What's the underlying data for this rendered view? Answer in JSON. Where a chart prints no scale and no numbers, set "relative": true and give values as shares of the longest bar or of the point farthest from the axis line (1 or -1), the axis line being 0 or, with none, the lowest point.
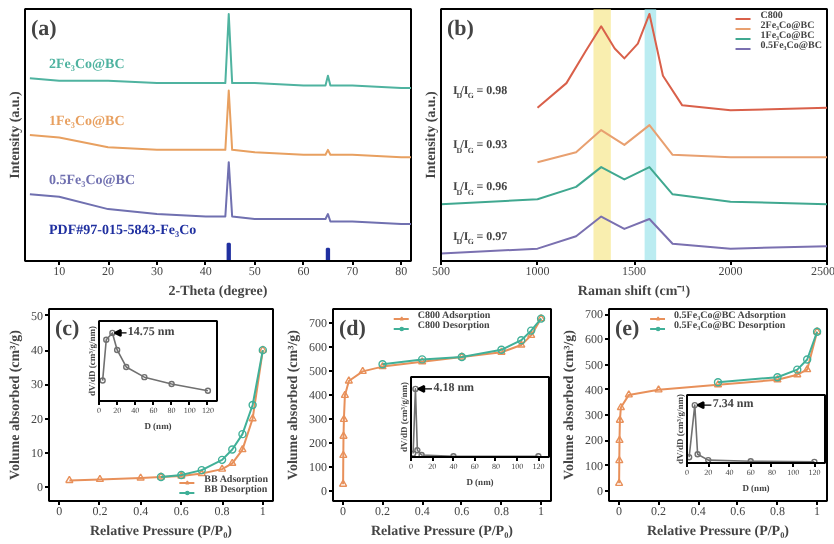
{
  "chart_data": [
    {
      "type": "line",
      "title": "(a)",
      "xlabel": "2-Theta (degree)",
      "ylabel": "Intensity (a.u.)",
      "relative": true,
      "xlim": [
        3,
        82
      ],
      "xticks": [
        10,
        20,
        30,
        40,
        50,
        60,
        70,
        80
      ],
      "legend": false,
      "grid": false,
      "series": [
        {
          "name": "2Fe₃Co@BC",
          "color": "#4fb3a0",
          "x": [
            4,
            10,
            20,
            30,
            40,
            44,
            44.7,
            45.4,
            50,
            60,
            64.5,
            65,
            65.5,
            70,
            80,
            82
          ],
          "values": [
            0.74,
            0.73,
            0.73,
            0.72,
            0.72,
            0.72,
            1.0,
            0.72,
            0.72,
            0.71,
            0.71,
            0.75,
            0.71,
            0.71,
            0.7,
            0.7
          ]
        },
        {
          "name": "1Fe₃Co@BC",
          "color": "#e8a060",
          "x": [
            4,
            10,
            20,
            30,
            40,
            44,
            44.7,
            45.4,
            50,
            60,
            64.5,
            65,
            65.5,
            70,
            80,
            82
          ],
          "values": [
            0.51,
            0.5,
            0.46,
            0.45,
            0.45,
            0.45,
            0.69,
            0.45,
            0.44,
            0.43,
            0.43,
            0.45,
            0.43,
            0.43,
            0.42,
            0.42
          ]
        },
        {
          "name": "0.5Fe₃Co@BC",
          "color": "#7070b0",
          "x": [
            4,
            10,
            20,
            30,
            40,
            44,
            44.7,
            45.4,
            50,
            60,
            64.5,
            65,
            65.5,
            70,
            80,
            82
          ],
          "values": [
            0.27,
            0.26,
            0.21,
            0.19,
            0.18,
            0.18,
            0.4,
            0.18,
            0.17,
            0.17,
            0.17,
            0.19,
            0.16,
            0.16,
            0.15,
            0.15
          ]
        },
        {
          "name": "PDF#97-015-5843-Fe₃Co",
          "type": "bar",
          "color": "#2030a0",
          "x": [
            44.7,
            65.0
          ],
          "values": [
            0.07,
            0.05
          ]
        }
      ]
    },
    {
      "type": "line",
      "title": "(b)",
      "xlabel": "Raman shift (cm⁻¹)",
      "ylabel": "Intensity (a.u.)",
      "relative": true,
      "xlim": [
        500,
        2500
      ],
      "xticks": [
        500,
        1000,
        1500,
        2000,
        2500
      ],
      "legend": "top right",
      "grid": false,
      "bands": [
        {
          "axis": "x",
          "from": 1290,
          "to": 1380,
          "color": "#f5e27a"
        },
        {
          "axis": "x",
          "from": 1555,
          "to": 1615,
          "color": "#8ee0e8"
        }
      ],
      "annotations": [
        "I$_{D}$/I$_{G}$ = 0.98",
        "I$_{D}$/I$_{G}$ = 0.93",
        "I$_{D}$/I$_{G}$ = 0.96",
        "I$_{D}$/I$_{G}$ = 0.97"
      ],
      "series": [
        {
          "name": "C800",
          "color": "#d9604a",
          "x": [
            1000,
            1150,
            1250,
            1330,
            1400,
            1450,
            1520,
            1580,
            1650,
            1750,
            2000,
            2500
          ],
          "values": [
            0.62,
            0.72,
            0.85,
            0.95,
            0.86,
            0.82,
            0.88,
            1.0,
            0.75,
            0.63,
            0.61,
            0.62
          ]
        },
        {
          "name": "2Fe₃Co@BC",
          "color": "#e8a070",
          "x": [
            1000,
            1200,
            1330,
            1450,
            1580,
            1700,
            2000,
            2500
          ],
          "values": [
            0.4,
            0.44,
            0.53,
            0.47,
            0.55,
            0.43,
            0.42,
            0.42
          ]
        },
        {
          "name": "1Fe₃Co@BC",
          "color": "#40a890",
          "x": [
            500,
            1000,
            1200,
            1330,
            1450,
            1580,
            1700,
            2000,
            2500
          ],
          "values": [
            0.23,
            0.25,
            0.3,
            0.38,
            0.33,
            0.38,
            0.27,
            0.24,
            0.23
          ]
        },
        {
          "name": "0.5Fe₃Co@BC",
          "color": "#7a70b0",
          "x": [
            500,
            1000,
            1200,
            1330,
            1450,
            1580,
            1700,
            2000,
            2500
          ],
          "values": [
            0.03,
            0.05,
            0.1,
            0.18,
            0.13,
            0.17,
            0.07,
            0.05,
            0.06
          ]
        }
      ]
    },
    {
      "type": "line",
      "title": "(c)",
      "xlabel": "Relative Pressure (P/P₀)",
      "ylabel": "Volume absorbed (cm³/g)",
      "xlim": [
        -0.05,
        1.05
      ],
      "xticks": [
        0.0,
        0.2,
        0.4,
        0.6,
        0.8,
        1.0
      ],
      "ylim": [
        -4,
        52
      ],
      "yticks": [
        0,
        10,
        20,
        30,
        40,
        50
      ],
      "legend": "bottom right",
      "grid": false,
      "series": [
        {
          "name": "BB Adsorption",
          "color": "#e8905a",
          "marker": "triangle",
          "x": [
            0.05,
            0.2,
            0.4,
            0.5,
            0.6,
            0.7,
            0.8,
            0.85,
            0.9,
            0.95,
            1.0
          ],
          "values": [
            2,
            2.3,
            2.7,
            3,
            3.3,
            4,
            5.3,
            7,
            11,
            20,
            40
          ]
        },
        {
          "name": "BB Desorption",
          "color": "#40b098",
          "marker": "circle",
          "x": [
            1.0,
            0.95,
            0.9,
            0.85,
            0.8,
            0.7,
            0.6,
            0.5
          ],
          "values": [
            40,
            24,
            15.5,
            11,
            8,
            5,
            3.6,
            3
          ]
        }
      ]
    },
    {
      "type": "line",
      "xlabel": "D (nm)",
      "ylabel": "dV/dD (cm³/g/nm)",
      "relative": true,
      "xlim": [
        0,
        130
      ],
      "xticks": [
        0,
        20,
        40,
        60,
        80,
        100,
        120
      ],
      "grid": false,
      "marker": "circle",
      "annotations": [
        {
          "text": "14.75 nm",
          "x": 14.75,
          "y": 1.0
        }
      ],
      "series": [
        {
          "color": "#707070",
          "x": [
            4,
            8,
            14.75,
            20,
            30,
            50,
            80,
            120
          ],
          "values": [
            0.3,
            0.9,
            1.0,
            0.75,
            0.5,
            0.35,
            0.25,
            0.15
          ]
        }
      ]
    },
    {
      "type": "line",
      "title": "(d)",
      "xlabel": "Relative Pressure (P/P₀)",
      "ylabel": "Volume absorbed (cm³/g)",
      "xlim": [
        -0.05,
        1.05
      ],
      "xticks": [
        0.0,
        0.2,
        0.4,
        0.6,
        0.8,
        1.0
      ],
      "ylim": [
        -40,
        760
      ],
      "yticks": [
        0,
        100,
        200,
        300,
        400,
        500,
        600,
        700
      ],
      "legend": "top",
      "grid": false,
      "series": [
        {
          "name": "C800 Adsorption",
          "color": "#e8905a",
          "marker": "triangle",
          "x": [
            0.001,
            0.002,
            0.003,
            0.005,
            0.01,
            0.03,
            0.1,
            0.2,
            0.4,
            0.6,
            0.8,
            0.9,
            0.95,
            1.0
          ],
          "values": [
            30,
            150,
            230,
            300,
            400,
            460,
            500,
            520,
            540,
            560,
            580,
            610,
            650,
            720
          ]
        },
        {
          "name": "C800 Desorption",
          "color": "#40b098",
          "marker": "circle",
          "x": [
            1.0,
            0.95,
            0.9,
            0.8,
            0.6,
            0.4,
            0.2
          ],
          "values": [
            720,
            670,
            630,
            590,
            560,
            550,
            530
          ]
        }
      ]
    },
    {
      "type": "line",
      "xlabel": "D (nm)",
      "ylabel": "dV/dD (cm³/g/nm)",
      "relative": true,
      "xlim": [
        0,
        130
      ],
      "xticks": [
        0,
        20,
        40,
        60,
        80,
        100,
        120
      ],
      "grid": false,
      "marker": "circle",
      "annotations": [
        {
          "text": "4.18 nm",
          "x": 4.18,
          "y": 1.0
        }
      ],
      "series": [
        {
          "color": "#707070",
          "x": [
            2,
            4.18,
            6,
            10,
            40,
            120
          ],
          "values": [
            0.05,
            1.0,
            0.1,
            0.03,
            0.01,
            0.01
          ]
        }
      ]
    },
    {
      "type": "line",
      "title": "(e)",
      "xlabel": "Relative Pressure (P/P₀)",
      "ylabel": "Volume absorbed (cm³/g)",
      "xlim": [
        -0.05,
        1.05
      ],
      "xticks": [
        0.0,
        0.2,
        0.4,
        0.6,
        0.8,
        1.0
      ],
      "ylim": [
        -40,
        720
      ],
      "yticks": [
        0,
        100,
        200,
        300,
        400,
        500,
        600,
        700
      ],
      "legend": "top",
      "grid": false,
      "series": [
        {
          "name": "0.5Fe₃Co@BC Adsorption",
          "color": "#e8905a",
          "marker": "triangle",
          "x": [
            0.001,
            0.002,
            0.003,
            0.005,
            0.01,
            0.05,
            0.2,
            0.5,
            0.8,
            0.9,
            0.95,
            1.0
          ],
          "values": [
            30,
            120,
            200,
            280,
            330,
            380,
            400,
            420,
            440,
            460,
            480,
            630
          ]
        },
        {
          "name": "0.5Fe₃Co@BC Desorption",
          "color": "#40b098",
          "marker": "circle",
          "x": [
            1.0,
            0.95,
            0.9,
            0.8,
            0.5
          ],
          "values": [
            630,
            520,
            480,
            450,
            430
          ]
        }
      ]
    },
    {
      "type": "line",
      "xlabel": "D (nm)",
      "ylabel": "dV/dD (cm³/g/nm)",
      "relative": true,
      "xlim": [
        0,
        130
      ],
      "xticks": [
        0,
        20,
        40,
        60,
        80,
        100,
        120
      ],
      "grid": false,
      "marker": "circle",
      "annotations": [
        {
          "text": "7.34 nm",
          "x": 7.34,
          "y": 1.0
        }
      ],
      "series": [
        {
          "color": "#707070",
          "x": [
            2,
            7.34,
            10,
            20,
            60,
            120
          ],
          "values": [
            0.1,
            1.0,
            0.15,
            0.05,
            0.03,
            0.02
          ]
        }
      ]
    }
  ]
}
